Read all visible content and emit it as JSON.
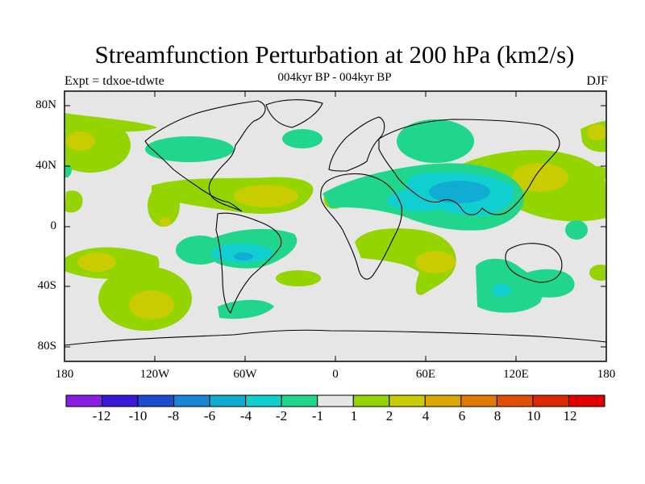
{
  "header": {
    "title": "Streamfunction Perturbation at 200 hPa (km2/s)",
    "subtitle": "004kyr BP - 004kyr BP",
    "left": "Expt = tdxoe-tdwte",
    "right": "DJF"
  },
  "axes": {
    "y_ticks": [
      "80N",
      "40N",
      "0",
      "40S",
      "80S"
    ],
    "x_ticks": [
      "180",
      "120W",
      "60W",
      "0",
      "60E",
      "120E",
      "180"
    ]
  },
  "colorbar": {
    "labels": [
      "-12",
      "-10",
      "-8",
      "-6",
      "-4",
      "-2",
      "-1",
      "1",
      "2",
      "4",
      "6",
      "8",
      "10",
      "12"
    ],
    "colors": [
      "#8a1ee0",
      "#3a18d6",
      "#1e4cd0",
      "#1a84d6",
      "#10acd2",
      "#12cfcf",
      "#20d68c",
      "#e6e6e6",
      "#94d400",
      "#c8cc00",
      "#dca800",
      "#e07a00",
      "#e05000",
      "#dc2800",
      "#e00000"
    ]
  },
  "field": {
    "background": "#e6e6e6",
    "light_green": "#94d400",
    "yellow": "#c8cc00",
    "mint": "#20d68c",
    "cyan": "#12cfcf",
    "blue": "#10acd2"
  }
}
